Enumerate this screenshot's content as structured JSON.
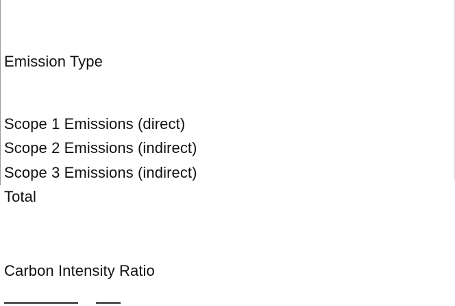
{
  "table": {
    "header": "Emission Type",
    "rows": [
      "Scope 1 Emissions (direct)",
      "Scope 2 Emissions (indirect)",
      "Scope 3 Emissions (indirect)",
      "Total"
    ],
    "ratio_label": "Carbon Intensity Ratio"
  }
}
